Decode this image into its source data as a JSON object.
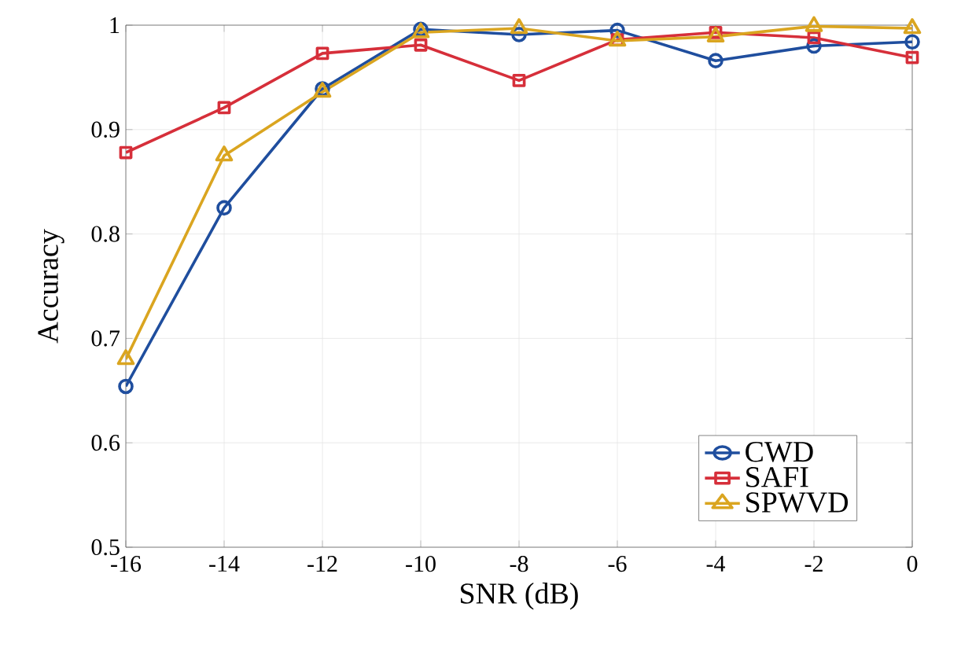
{
  "chart_data": {
    "type": "line",
    "xlabel": "SNR (dB)",
    "ylabel": "Accuracy",
    "x": [
      -16,
      -14,
      -12,
      -10,
      -8,
      -6,
      -4,
      -2,
      0
    ],
    "xlim": [
      -16,
      0
    ],
    "xticks": [
      -16,
      -14,
      -12,
      -10,
      -8,
      -6,
      -4,
      -2,
      0
    ],
    "ylim": [
      0.5,
      1
    ],
    "yticks": [
      0.5,
      0.6,
      0.7,
      0.8,
      0.9,
      1
    ],
    "grid": true,
    "legend": "bottom right",
    "line_style": "solid",
    "series": [
      {
        "name": "CWD",
        "color": "#1f4e9e",
        "marker": "circle",
        "values": [
          0.654,
          0.825,
          0.939,
          0.996,
          0.991,
          0.995,
          0.966,
          0.98,
          0.984
        ]
      },
      {
        "name": "SAFI",
        "color": "#d62f3a",
        "marker": "square",
        "values": [
          0.878,
          0.921,
          0.973,
          0.981,
          0.947,
          0.986,
          0.993,
          0.988,
          0.969
        ]
      },
      {
        "name": "SPWVD",
        "color": "#daa520",
        "marker": "triangle",
        "values": [
          0.68,
          0.875,
          0.936,
          0.993,
          0.997,
          0.985,
          0.989,
          0.999,
          0.997
        ]
      }
    ]
  }
}
